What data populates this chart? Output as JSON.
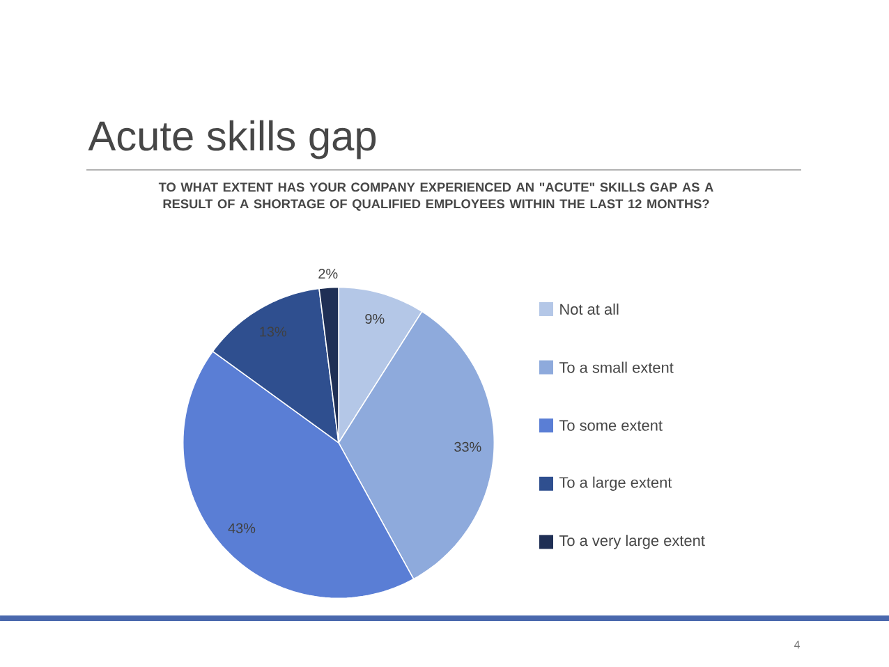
{
  "chart_data": {
    "type": "pie",
    "title": "Acute skills gap",
    "subtitle": "TO WHAT EXTENT HAS YOUR COMPANY EXPERIENCED AN \"ACUTE\" SKILLS GAP AS A RESULT OF A SHORTAGE OF QUALIFIED EMPLOYEES WITHIN THE LAST 12 MONTHS?",
    "categories": [
      "Not at all",
      "To a small extent",
      "To some extent",
      "To a large extent",
      "To a very large extent"
    ],
    "values": [
      9,
      33,
      43,
      13,
      2
    ],
    "value_labels": [
      "9%",
      "33%",
      "43%",
      "13%",
      "2%"
    ],
    "colors": [
      "#b4c7e7",
      "#8eaadc",
      "#5a7ed5",
      "#2f4f8f",
      "#1f2f55"
    ],
    "legend": "right",
    "annotations": [
      "4"
    ]
  }
}
